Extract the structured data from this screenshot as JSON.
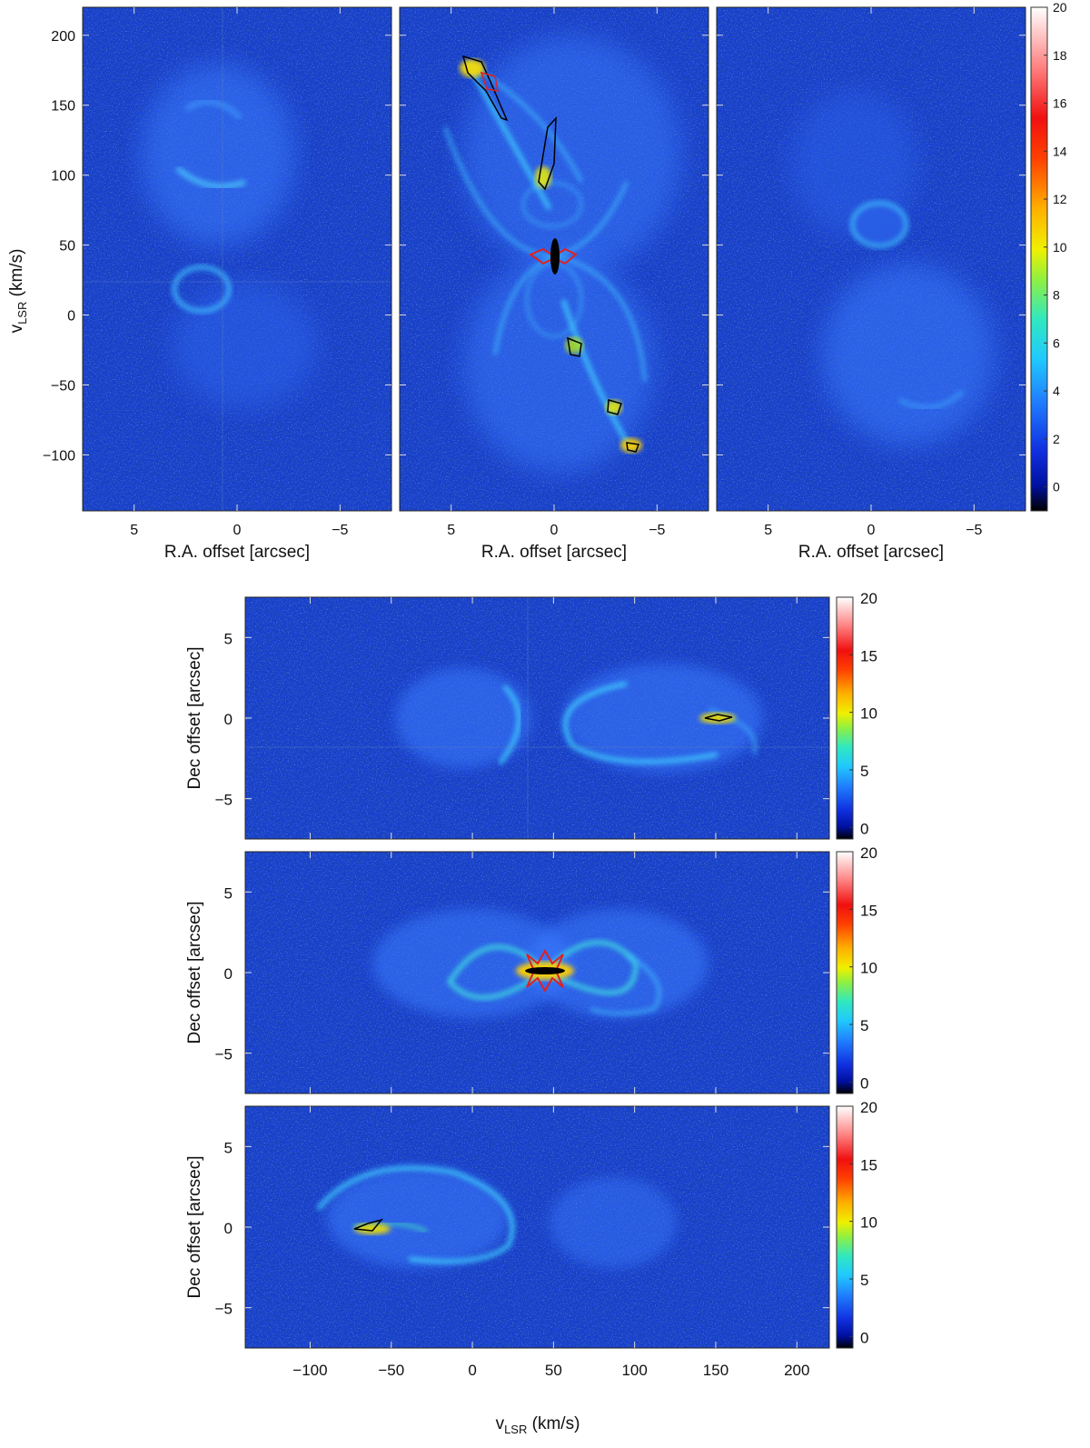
{
  "top_row": {
    "ylabel_main": "v",
    "ylabel_sub": "LSR",
    "ylabel_unit": " (km/s)",
    "xlabel": "R.A. offset [arcsec]",
    "panels": [
      "left",
      "center",
      "right"
    ]
  },
  "bottom_rows": {
    "ylabel": "Dec offset [arcsec]",
    "xlabel_main": "v",
    "xlabel_sub": "LSR",
    "xlabel_unit": " (km/s)",
    "panels": [
      "top",
      "middle",
      "bottom"
    ]
  },
  "colors": {
    "background_noise": "#1030d8",
    "contour_black": "#000000",
    "contour_red": "#e02020"
  },
  "chart_data": [
    {
      "type": "heatmap",
      "panel": "top-left",
      "xlabel": "R.A. offset [arcsec]",
      "ylabel": "vLSR (km/s)",
      "x_ticks": [
        5,
        0,
        -5
      ],
      "x_tick_labels": [
        "5",
        "0",
        "−5"
      ],
      "y_ticks": [
        200,
        150,
        100,
        50,
        0,
        -50,
        -100
      ],
      "y_tick_labels": [
        "200",
        "150",
        "100",
        "50",
        "0",
        "−50",
        "−100"
      ],
      "xlim": [
        7.5,
        -7.5
      ],
      "ylim": [
        -140,
        220
      ]
    },
    {
      "type": "heatmap",
      "panel": "top-center",
      "xlabel": "R.A. offset [arcsec]",
      "x_ticks": [
        5,
        0,
        -5
      ],
      "x_tick_labels": [
        "5",
        "0",
        "−5"
      ],
      "xlim": [
        7.5,
        -7.5
      ],
      "ylim": [
        -140,
        220
      ]
    },
    {
      "type": "heatmap",
      "panel": "top-right",
      "xlabel": "R.A. offset [arcsec]",
      "x_ticks": [
        5,
        0,
        -5
      ],
      "x_tick_labels": [
        "5",
        "0",
        "−5"
      ],
      "xlim": [
        7.5,
        -7.5
      ],
      "ylim": [
        -140,
        220
      ],
      "colorbar_ticks": [
        0,
        2,
        4,
        6,
        8,
        10,
        12,
        14,
        16,
        18,
        20
      ],
      "colorbar_range": [
        -1,
        20
      ]
    },
    {
      "type": "heatmap",
      "panel": "bottom-1",
      "ylabel": "Dec offset [arcsec]",
      "y_ticks": [
        5,
        0,
        -5
      ],
      "y_tick_labels": [
        "5",
        "0",
        "−5"
      ],
      "xlim": [
        -140,
        220
      ],
      "ylim": [
        -7.5,
        7.5
      ],
      "colorbar_ticks": [
        0,
        5,
        10,
        15,
        20
      ],
      "colorbar_range": [
        -1,
        20
      ]
    },
    {
      "type": "heatmap",
      "panel": "bottom-2",
      "ylabel": "Dec offset [arcsec]",
      "y_ticks": [
        5,
        0,
        -5
      ],
      "y_tick_labels": [
        "5",
        "0",
        "−5"
      ],
      "xlim": [
        -140,
        220
      ],
      "ylim": [
        -7.5,
        7.5
      ],
      "colorbar_ticks": [
        0,
        5,
        10,
        15,
        20
      ],
      "colorbar_range": [
        -1,
        20
      ]
    },
    {
      "type": "heatmap",
      "panel": "bottom-3",
      "xlabel": "vLSR (km/s)",
      "ylabel": "Dec offset [arcsec]",
      "x_ticks": [
        -100,
        -50,
        0,
        50,
        100,
        150,
        200
      ],
      "x_tick_labels": [
        "−100",
        "−50",
        "0",
        "50",
        "100",
        "150",
        "200"
      ],
      "y_ticks": [
        5,
        0,
        -5
      ],
      "y_tick_labels": [
        "5",
        "0",
        "−5"
      ],
      "xlim": [
        -140,
        220
      ],
      "ylim": [
        -7.5,
        7.5
      ],
      "colorbar_ticks": [
        0,
        5,
        10,
        15,
        20
      ],
      "colorbar_range": [
        -1,
        20
      ]
    }
  ]
}
